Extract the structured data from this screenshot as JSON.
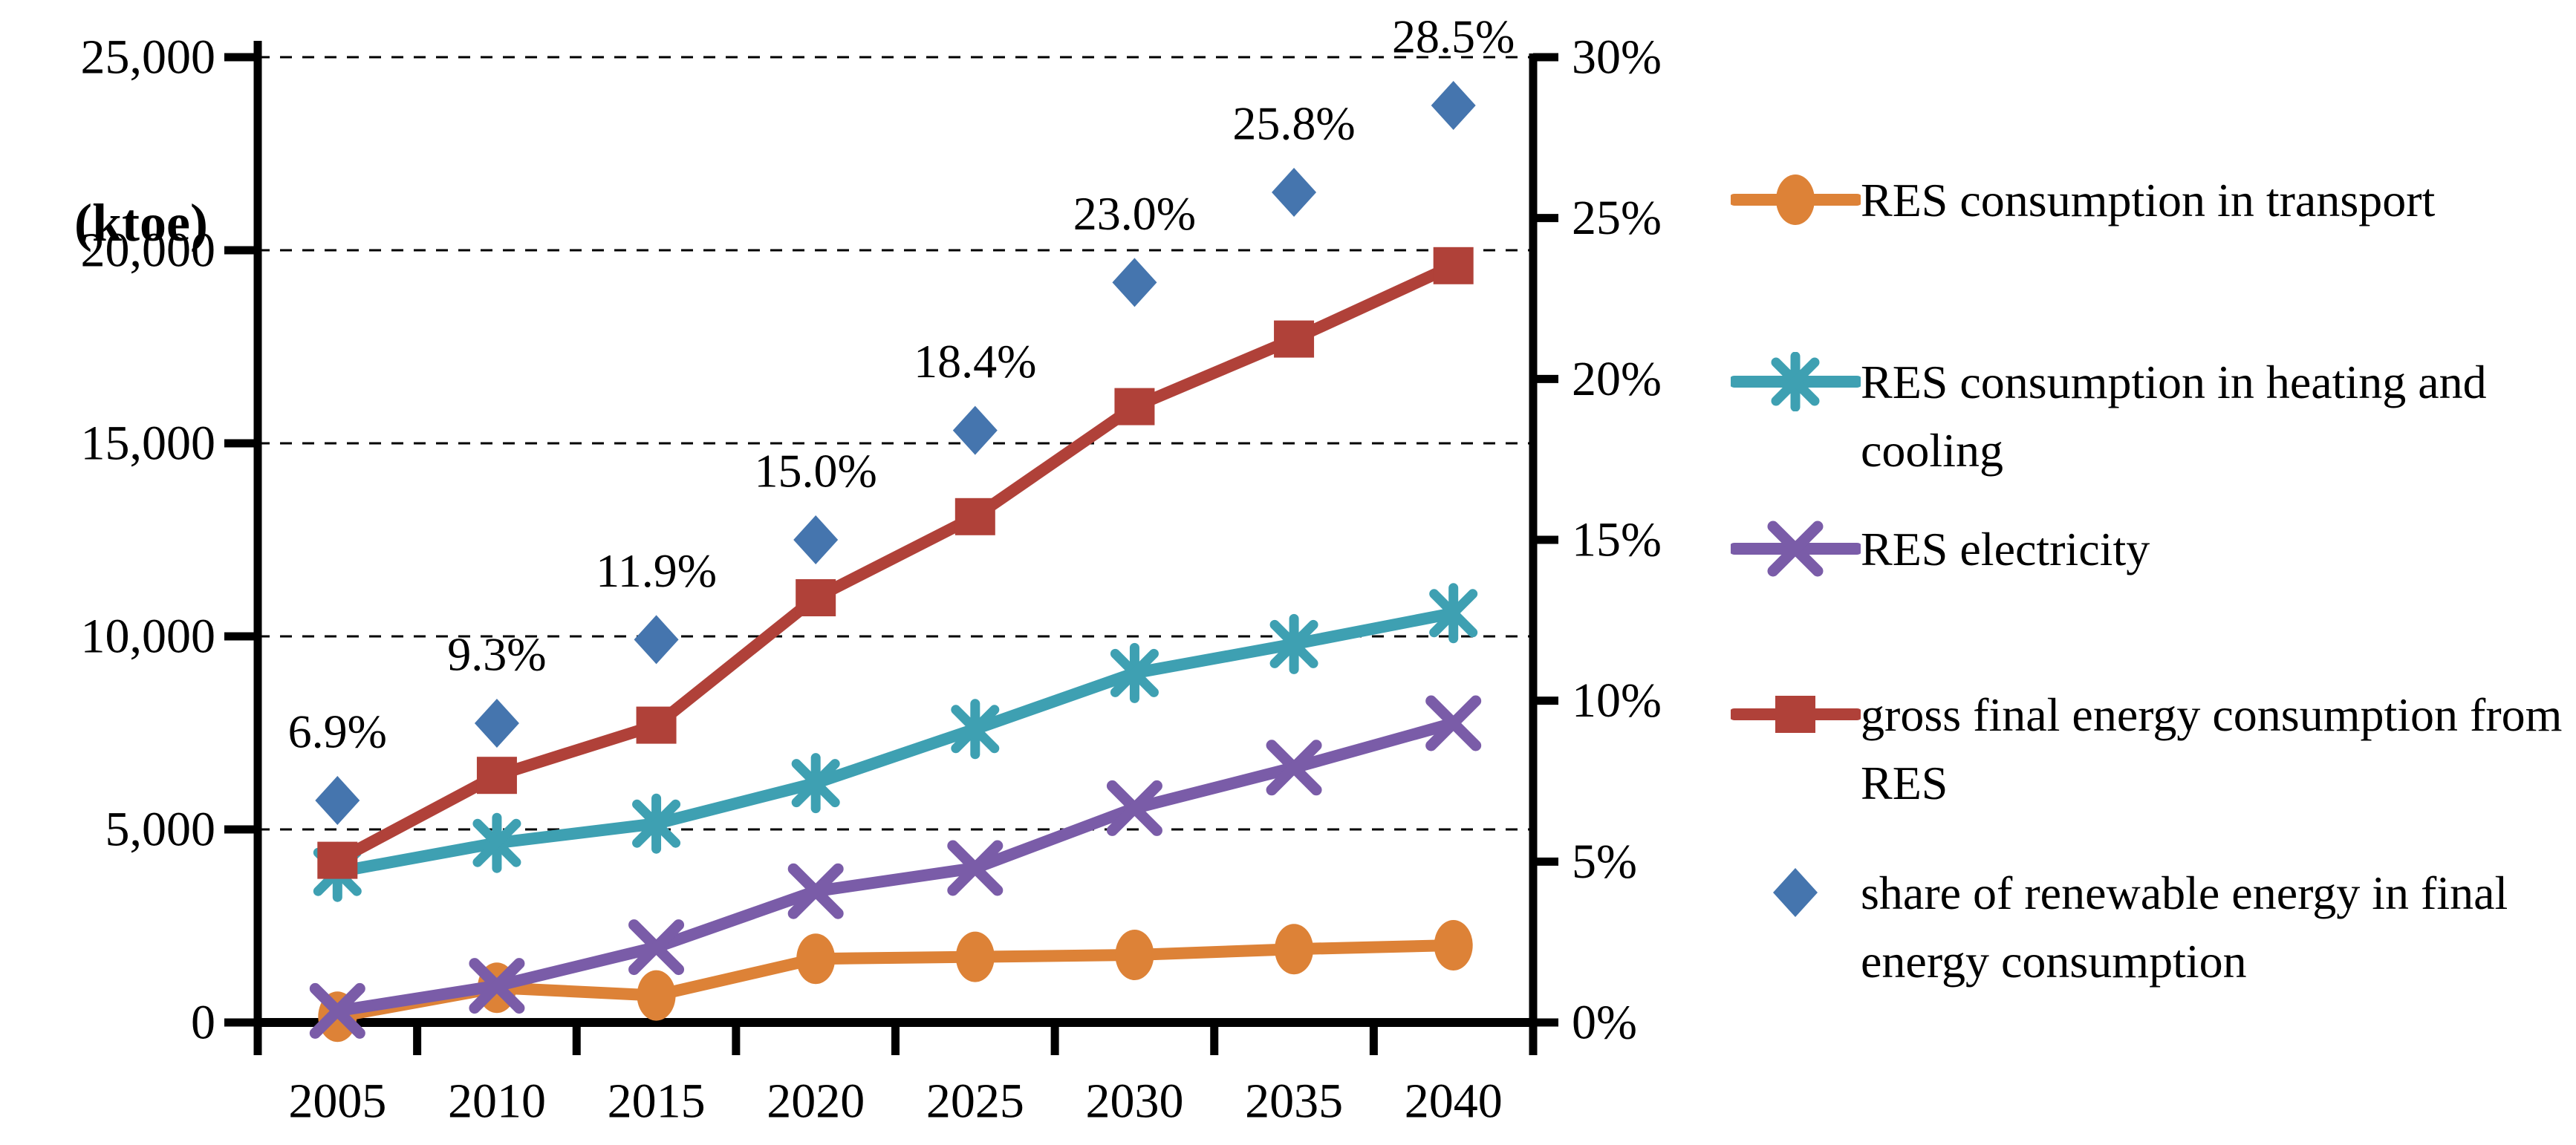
{
  "chart_data": {
    "type": "line",
    "title": "",
    "categories": [
      "2005",
      "2010",
      "2015",
      "2020",
      "2025",
      "2030",
      "2035",
      "2040"
    ],
    "left_axis": {
      "label": "(ktoe)",
      "tick_labels": [
        "25,000",
        "20,000",
        "15,000",
        "10,000",
        "5,000",
        "0"
      ],
      "tick_values": [
        25000,
        20000,
        15000,
        10000,
        5000,
        0
      ],
      "range": [
        0,
        25000
      ]
    },
    "right_axis": {
      "tick_labels": [
        "30%",
        "25%",
        "20%",
        "15%",
        "10%",
        "5%",
        "0%"
      ],
      "tick_values": [
        30,
        25,
        20,
        15,
        10,
        5,
        0
      ],
      "range": [
        0,
        30
      ]
    },
    "grid": "dashed horizontal gridlines at left-axis ticks",
    "legend_position": "right",
    "series": [
      {
        "name": "RES consumption in transport",
        "axis": "left",
        "marker": "circle",
        "color": "#DD8237",
        "values": [
          150,
          900,
          700,
          1650,
          1700,
          1750,
          1900,
          2000
        ]
      },
      {
        "name": "RES consumption in heating and cooling",
        "axis": "left",
        "marker": "asterisk",
        "color": "#3EA0B2",
        "values": [
          3900,
          4650,
          5150,
          6200,
          7600,
          9050,
          9800,
          10600
        ]
      },
      {
        "name": "RES electricity",
        "axis": "left",
        "marker": "x",
        "color": "#7A5CA8",
        "values": [
          300,
          950,
          1950,
          3400,
          4000,
          5550,
          6600,
          7750
        ]
      },
      {
        "name": "gross final energy consumption from RES",
        "axis": "left",
        "marker": "square",
        "color": "#B04139",
        "values": [
          4200,
          6400,
          7700,
          11000,
          13100,
          15950,
          17700,
          19600
        ]
      },
      {
        "name": "share of renewable energy in final energy consumption",
        "axis": "right",
        "marker": "diamond",
        "color": "#4575AE",
        "line": false,
        "values": [
          6.9,
          9.3,
          11.9,
          15.0,
          18.4,
          23.0,
          25.8,
          28.5
        ],
        "data_labels": [
          "6.9%",
          "9.3%",
          "11.9%",
          "15.0%",
          "18.4%",
          "23.0%",
          "25.8%",
          "28.5%"
        ]
      }
    ],
    "colors": {
      "axis": "#000000",
      "gridline": "#000000",
      "text": "#000000",
      "background": "#ffffff"
    }
  }
}
